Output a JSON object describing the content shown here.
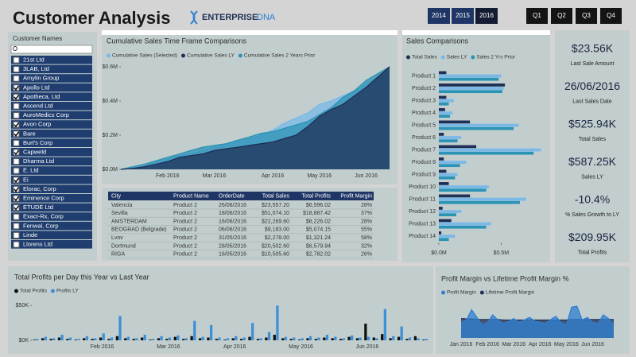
{
  "header": {
    "title": "Customer Analysis",
    "logo": "ENTERPRISE",
    "logo_suffix": "DNA"
  },
  "year_buttons": [
    {
      "label": "2014",
      "selected": false
    },
    {
      "label": "2015",
      "selected": false
    },
    {
      "label": "2016",
      "selected": true
    }
  ],
  "quarter_buttons": [
    "Q1",
    "Q2",
    "Q3",
    "Q4"
  ],
  "slicer": {
    "title": "Customer Names",
    "items": [
      {
        "name": "21st Ltd",
        "checked": false
      },
      {
        "name": "3LAB, Ltd",
        "checked": false
      },
      {
        "name": "Amylin Group",
        "checked": false
      },
      {
        "name": "Apollo Ltd",
        "checked": true
      },
      {
        "name": "Apotheca, Ltd",
        "checked": true
      },
      {
        "name": "Ascend Ltd",
        "checked": false
      },
      {
        "name": "AuroMedics Corp",
        "checked": false
      },
      {
        "name": "Avon Corp",
        "checked": true
      },
      {
        "name": "Bare",
        "checked": true
      },
      {
        "name": "Burt's Corp",
        "checked": false
      },
      {
        "name": "Capweld",
        "checked": true
      },
      {
        "name": "Dharma Ltd",
        "checked": false
      },
      {
        "name": "E. Ltd",
        "checked": false
      },
      {
        "name": "Ei",
        "checked": true
      },
      {
        "name": "Elorac, Corp",
        "checked": true
      },
      {
        "name": "Eminence Corp",
        "checked": true
      },
      {
        "name": "ETUDE Ltd",
        "checked": true
      },
      {
        "name": "Exact-Rx, Corp",
        "checked": false
      },
      {
        "name": "Fenwal, Corp",
        "checked": false
      },
      {
        "name": "Linde",
        "checked": false
      },
      {
        "name": "Llorens Ltd",
        "checked": false
      }
    ]
  },
  "table": {
    "columns": [
      "City",
      "Product Name",
      "OrderDate",
      "Total Sales",
      "Total Profits",
      "Profit Margin"
    ],
    "rows": [
      [
        "Valencia",
        "Product 2",
        "26/06/2016",
        "$23,557.20",
        "$6,596.02",
        "28%"
      ],
      [
        "Sevilla",
        "Product 2",
        "18/06/2016",
        "$51,074.10",
        "$18,887.42",
        "37%"
      ],
      [
        "AMSTERDAM",
        "Product 2",
        "16/06/2016",
        "$22,269.60",
        "$6,226.02",
        "28%"
      ],
      [
        "BEOGRAD (Belgrade)",
        "Product 2",
        "06/06/2016",
        "$9,183.00",
        "$5,074.15",
        "55%"
      ],
      [
        "Lvov",
        "Product 2",
        "31/05/2016",
        "$2,278.00",
        "$1,321.24",
        "58%"
      ],
      [
        "Dortmund",
        "Product 2",
        "28/05/2016",
        "$20,502.60",
        "$6,579.94",
        "32%"
      ],
      [
        "RIGA",
        "Product 2",
        "16/05/2016",
        "$10,505.60",
        "$2,782.02",
        "26%"
      ]
    ]
  },
  "kpis": [
    {
      "value": "$23.56K",
      "label": "Last Sale Amount"
    },
    {
      "value": "26/06/2016",
      "label": "Last Sales Date"
    },
    {
      "value": "$525.94K",
      "label": "Total Sales"
    },
    {
      "value": "$587.25K",
      "label": "Sales LY"
    },
    {
      "value": "-10.4%",
      "label": "% Sales Growth to LY"
    },
    {
      "value": "$209.95K",
      "label": "Total Profits"
    }
  ],
  "chart_data": [
    {
      "type": "line",
      "title": "Cumulative Sales Time Frame Comparisons",
      "categories": [
        null,
        null,
        null,
        null,
        "Feb 2016",
        null,
        null,
        null,
        "Mar 2016",
        null,
        null,
        null,
        null,
        "Apr 2016",
        null,
        null,
        null,
        "May 2016",
        null,
        null,
        null,
        "Jun 2016",
        null,
        null
      ],
      "series": [
        {
          "name": "Cumulative Sales (Selected)",
          "color": "#7ab8e8",
          "values": [
            0,
            10000,
            20000,
            40000,
            60000,
            80000,
            90000,
            110000,
            130000,
            150000,
            160000,
            180000,
            200000,
            230000,
            270000,
            300000,
            330000,
            380000,
            400000,
            430000,
            460000,
            500000,
            540000,
            580000
          ]
        },
        {
          "name": "Cumulative Sales LY",
          "color": "#1f2f55",
          "values": [
            0,
            5000,
            15000,
            30000,
            45000,
            70000,
            80000,
            90000,
            110000,
            120000,
            130000,
            140000,
            150000,
            160000,
            180000,
            200000,
            250000,
            310000,
            350000,
            380000,
            430000,
            480000,
            540000,
            600000
          ]
        },
        {
          "name": "Cumulative Sales 2 Years Prior",
          "color": "#2b93b5",
          "values": [
            0,
            15000,
            30000,
            50000,
            70000,
            90000,
            110000,
            130000,
            140000,
            150000,
            170000,
            190000,
            210000,
            220000,
            240000,
            260000,
            280000,
            320000,
            360000,
            420000,
            460000,
            520000,
            560000,
            600000
          ]
        }
      ],
      "ylim": [
        0,
        600000
      ],
      "yticks": [
        {
          "value": 0,
          "label": "$0.0M"
        },
        {
          "value": 200000,
          "label": "$0.2M"
        },
        {
          "value": 400000,
          "label": "$0.4M"
        },
        {
          "value": 600000,
          "label": "$0.6M"
        }
      ]
    },
    {
      "type": "bar",
      "orientation": "horizontal",
      "title": "Sales Comparisons",
      "categories": [
        "Product 1",
        "Product 2",
        "Product 3",
        "Product 4",
        "Product 5",
        "Product 6",
        "Product 7",
        "Product 8",
        "Product 9",
        "Product 10",
        "Product 11",
        "Product 12",
        "Product 13",
        "Product 14"
      ],
      "series": [
        {
          "name": "Total Sales",
          "color": "#1f2f55",
          "values": [
            60000,
            530000,
            60000,
            50000,
            250000,
            40000,
            300000,
            40000,
            60000,
            80000,
            250000,
            30000,
            100000,
            20000
          ]
        },
        {
          "name": "Sales LY",
          "color": "#7ab8e8",
          "values": [
            500000,
            520000,
            120000,
            110000,
            640000,
            180000,
            820000,
            220000,
            150000,
            400000,
            700000,
            180000,
            420000,
            130000
          ]
        },
        {
          "name": "Sales 2 Yrs Prior",
          "color": "#2b93b5",
          "values": [
            480000,
            510000,
            80000,
            90000,
            600000,
            150000,
            760000,
            170000,
            130000,
            380000,
            650000,
            140000,
            380000,
            80000
          ]
        }
      ],
      "xlim": [
        0,
        880000
      ],
      "xticks": [
        {
          "value": 0,
          "label": "$0.0M"
        },
        {
          "value": 500000,
          "label": "$0.5M"
        }
      ]
    },
    {
      "type": "bar",
      "title": "Total Profits per Day this Year vs Last Year",
      "categories": [
        null,
        null,
        null,
        null,
        null,
        null,
        null,
        null,
        "Feb 2016",
        null,
        null,
        null,
        null,
        null,
        null,
        null,
        "Mar 2016",
        null,
        null,
        null,
        null,
        null,
        null,
        null,
        "Apr 2016",
        null,
        null,
        null,
        null,
        null,
        null,
        null,
        "May 2016",
        null,
        null,
        null,
        null,
        null,
        null,
        null,
        "Jun 2016",
        null,
        null,
        null,
        null,
        null,
        null,
        null
      ],
      "series": [
        {
          "name": "Total Profits",
          "color": "#111111",
          "values": [
            1000,
            3000,
            2000,
            4000,
            2000,
            1000,
            3000,
            2000,
            4000,
            2000,
            6000,
            3000,
            2000,
            4000,
            1000,
            3000,
            2000,
            5000,
            2000,
            6000,
            3000,
            4000,
            2000,
            1000,
            3000,
            2000,
            5000,
            2000,
            4000,
            8000,
            3000,
            2000,
            1000,
            3000,
            2000,
            4000,
            3000,
            2000,
            5000,
            3000,
            24000,
            4000,
            9000,
            3000,
            5000,
            2000,
            6000,
            1000
          ]
        },
        {
          "name": "Profits LY",
          "color": "#3d8fd6",
          "values": [
            2000,
            5000,
            3000,
            8000,
            4000,
            2000,
            6000,
            3000,
            10000,
            4000,
            35000,
            5000,
            3000,
            8000,
            2000,
            6000,
            4000,
            7000,
            3000,
            28000,
            5000,
            22000,
            4000,
            3000,
            6000,
            4000,
            25000,
            3000,
            12000,
            50000,
            5000,
            4000,
            3000,
            6000,
            4000,
            8000,
            5000,
            3000,
            7000,
            4000,
            5000,
            3000,
            45000,
            6000,
            20000,
            4000,
            3000,
            2000
          ]
        }
      ],
      "ylim": [
        0,
        55000
      ],
      "yticks": [
        {
          "value": 0,
          "label": "$0K"
        },
        {
          "value": 50000,
          "label": "$50K"
        }
      ]
    },
    {
      "type": "area",
      "title": "Profit Margin vs Lifetime Profit Margin %",
      "categories": [
        "Jan 2016",
        null,
        null,
        null,
        null,
        "Feb 2016",
        null,
        null,
        null,
        null,
        "Mar 2016",
        null,
        null,
        null,
        null,
        "Apr 2016",
        null,
        null,
        null,
        null,
        "May 2016",
        null,
        null,
        null,
        null,
        "Jun 2016",
        null,
        null,
        null,
        null
      ],
      "series": [
        {
          "name": "Profit Margin",
          "color": "#2f7fd0",
          "values": [
            30,
            35,
            55,
            40,
            25,
            30,
            45,
            35,
            28,
            32,
            38,
            30,
            35,
            40,
            33,
            30,
            28,
            36,
            42,
            30,
            25,
            60,
            62,
            35,
            40,
            30,
            28,
            45,
            38,
            25
          ]
        },
        {
          "name": "Lifetime Profit Margin",
          "color": "#1f2f55",
          "values": [
            38,
            37,
            37,
            36,
            36,
            36,
            36,
            36,
            35,
            35,
            35,
            35,
            35,
            35,
            35,
            35,
            35,
            35,
            35,
            35,
            35,
            36,
            36,
            36,
            36,
            36,
            36,
            36,
            36,
            36
          ]
        }
      ],
      "ylim": [
        0,
        70
      ]
    }
  ]
}
